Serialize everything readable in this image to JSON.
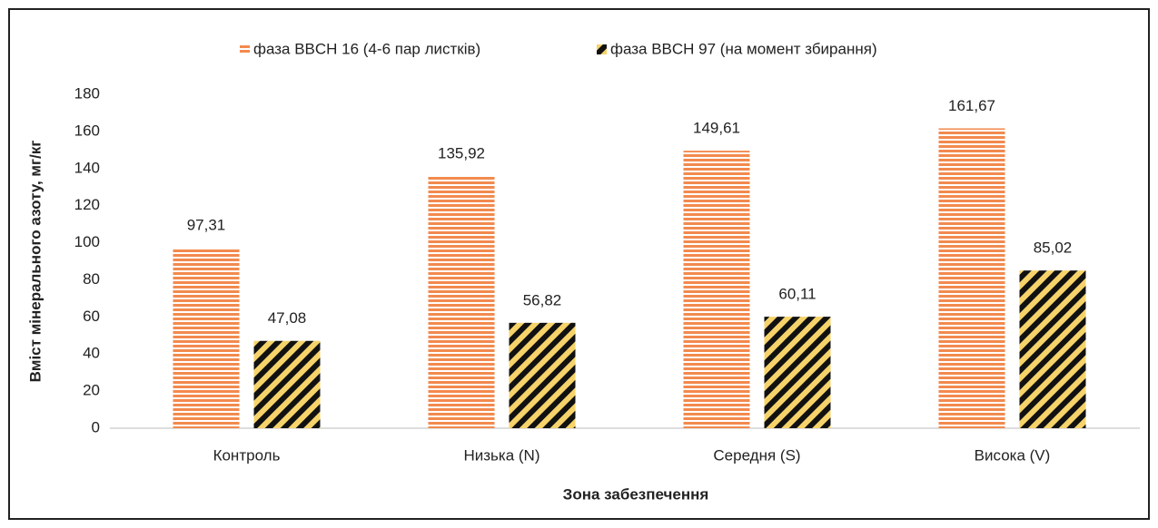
{
  "chart_data": {
    "type": "bar",
    "categories": [
      "Контроль",
      "Низька (N)",
      "Середня (S)",
      "Висока (V)"
    ],
    "series": [
      {
        "name": "фаза BBCH 16 (4-6 пар листків)",
        "color": "#f28a4e",
        "values": [
          97.31,
          135.92,
          149.61,
          161.67
        ],
        "value_labels": [
          "97,31",
          "135,92",
          "149,61",
          "161,67"
        ]
      },
      {
        "name": "фаза BBCH 97 (на момент збирання)",
        "color": "#f6d36a",
        "values": [
          47.08,
          56.82,
          60.11,
          85.02
        ],
        "value_labels": [
          "47,08",
          "56,82",
          "60,11",
          "85,02"
        ]
      }
    ],
    "xlabel": "Зона забезпечення",
    "ylabel": "Вміст мінерального азоту, мг/кг",
    "ylim": [
      0,
      180
    ],
    "yticks": [
      0,
      20,
      40,
      60,
      80,
      100,
      120,
      140,
      160,
      180
    ],
    "grid": false,
    "legend": "top"
  }
}
